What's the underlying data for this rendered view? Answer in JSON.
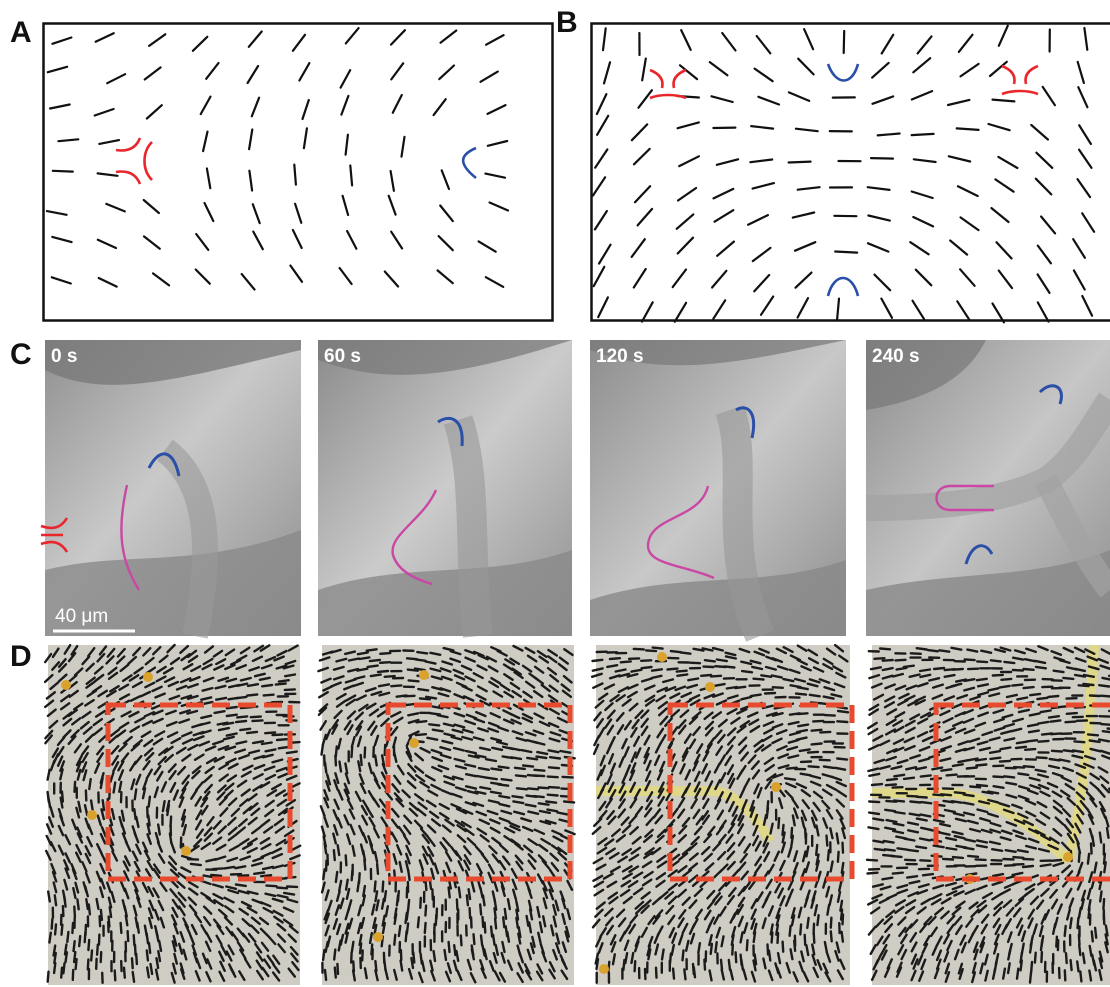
{
  "panel_labels": {
    "a": "A",
    "b": "B",
    "c": "C",
    "d": "D"
  },
  "time_labels": [
    "0 s",
    "60 s",
    "120 s",
    "240 s"
  ],
  "scale_bar_label": "40 μm",
  "colors": {
    "positive_defect": "#e8262b",
    "negative_defect": "#2a4fa8",
    "fold_curve": "#c948a4",
    "dashed_box": "#e84a2e",
    "microscopy_bg": "#a9a9a9",
    "simulation_bg": "#cfccc3",
    "stripe": "#e6dc70"
  }
}
